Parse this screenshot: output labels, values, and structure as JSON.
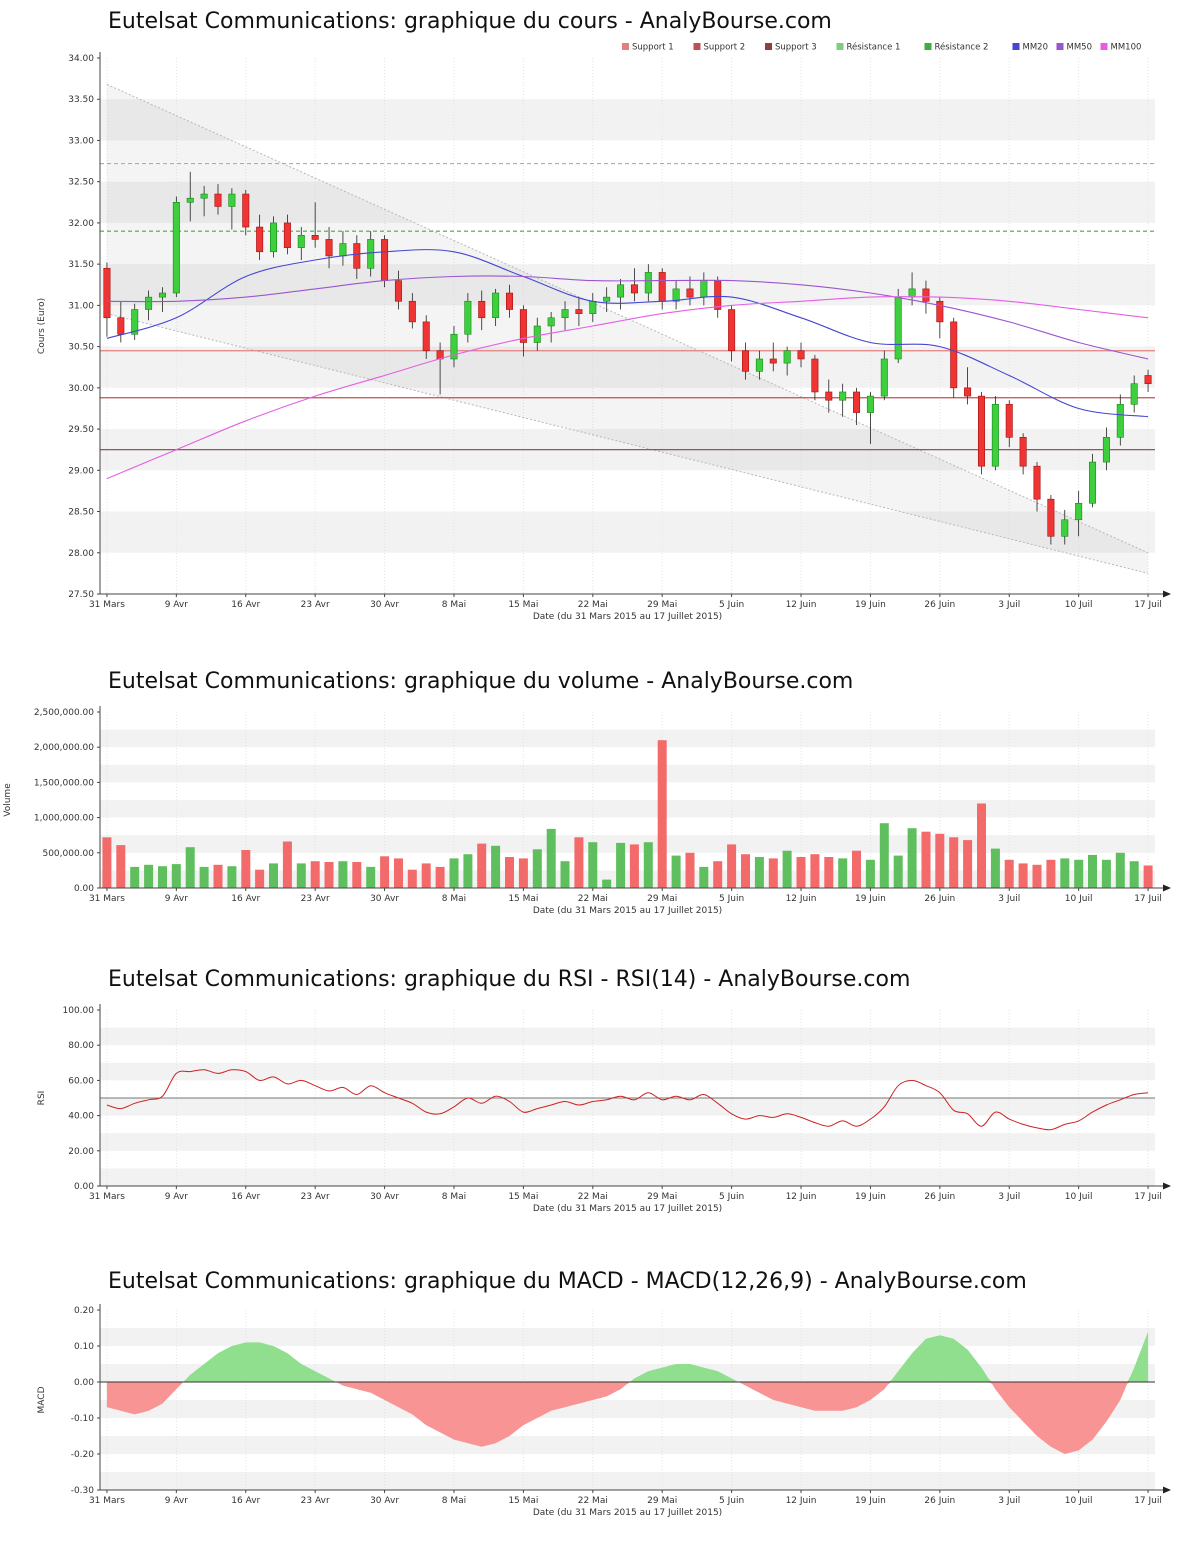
{
  "charts": {
    "price": {
      "title": "Eutelsat Communications: graphique du cours - AnalyBourse.com"
    },
    "volume": {
      "title": "Eutelsat Communications: graphique du volume - AnalyBourse.com"
    },
    "rsi": {
      "title": "Eutelsat Communications: graphique du RSI - RSI(14) - AnalyBourse.com"
    },
    "macd": {
      "title": "Eutelsat Communications: graphique du MACD - MACD(12,26,9) - AnalyBourse.com"
    }
  },
  "chart_data": [
    {
      "id": "price",
      "type": "candlestick",
      "title": "Eutelsat Communications: graphique du cours - AnalyBourse.com",
      "ylabel": "Cours (Euro)",
      "xlabel": "Date (du 31 Mars 2015 au 17 Juillet 2015)",
      "ylim": [
        27.5,
        34.0
      ],
      "ytick_step": 0.5,
      "stripe_step": 0.5,
      "x_tick_every": 5,
      "x_tick_labels": [
        "31 Mars",
        "9 Avr",
        "16 Avr",
        "23 Avr",
        "30 Avr",
        "8 Mai",
        "15 Mai",
        "22 Mai",
        "29 Mai",
        "5 Juin",
        "12 Juin",
        "19 Juin",
        "26 Juin",
        "3 Juil",
        "10 Juil",
        "17 Juil"
      ],
      "legend": [
        {
          "label": "Support 1",
          "color": "#e08080"
        },
        {
          "label": "Support 2",
          "color": "#c05050"
        },
        {
          "label": "Support 3",
          "color": "#8e4040"
        },
        {
          "label": "Résistance 1",
          "color": "#7ccf7c"
        },
        {
          "label": "Résistance 2",
          "color": "#3fae3f"
        },
        {
          "label": "MM20",
          "color": "#4646d0"
        },
        {
          "label": "MM50",
          "color": "#9a55d0"
        },
        {
          "label": "MM100",
          "color": "#e45fe4"
        }
      ],
      "support_lines": [
        {
          "label": "Support 1",
          "value": 30.45,
          "color": "#e08080",
          "dash": ""
        },
        {
          "label": "Support 2",
          "value": 29.88,
          "color": "#c05050",
          "dash": ""
        },
        {
          "label": "Support 3",
          "value": 29.25,
          "color": "#8e4040",
          "dash": ""
        }
      ],
      "resistance_lines": [
        {
          "label": "Résistance 1",
          "value": 32.72,
          "color": "#7ccf7c",
          "dash": "4,3"
        },
        {
          "label": "Résistance 2",
          "value": 31.9,
          "color": "#3fae3f",
          "dash": "4,3"
        }
      ],
      "moving_averages": [
        {
          "label": "MM20",
          "color": "#4646d0",
          "step": 5,
          "points": [
            30.6,
            30.85,
            31.35,
            31.55,
            31.65,
            31.65,
            31.35,
            31.05,
            31.05,
            31.1,
            30.85,
            30.55,
            30.5,
            30.15,
            29.75,
            29.65
          ]
        },
        {
          "label": "MM50",
          "color": "#9a55d0",
          "step": 5,
          "points": [
            31.05,
            31.05,
            31.1,
            31.2,
            31.3,
            31.35,
            31.35,
            31.3,
            31.3,
            31.3,
            31.25,
            31.15,
            31.0,
            30.8,
            30.55,
            30.35
          ]
        },
        {
          "label": "MM100",
          "color": "#e45fe4",
          "step": 5,
          "points": [
            28.9,
            29.25,
            29.6,
            29.9,
            30.15,
            30.4,
            30.6,
            30.75,
            30.9,
            31.0,
            31.05,
            31.1,
            31.1,
            31.05,
            30.95,
            30.85
          ]
        }
      ],
      "trend_channel": {
        "upper": [
          33.68,
          28.0
        ],
        "lower": [
          30.9,
          27.75
        ],
        "line_color": "#b8b8b8",
        "fill": "rgba(150,150,150,0.10)"
      },
      "candles": [
        [
          31.45,
          31.52,
          30.62,
          30.85
        ],
        [
          30.85,
          31.05,
          30.55,
          30.65
        ],
        [
          30.65,
          31.02,
          30.58,
          30.95
        ],
        [
          30.95,
          31.18,
          30.82,
          31.1
        ],
        [
          31.1,
          31.22,
          30.92,
          31.15
        ],
        [
          31.15,
          32.32,
          31.1,
          32.25
        ],
        [
          32.25,
          32.62,
          32.02,
          32.3
        ],
        [
          32.3,
          32.45,
          32.08,
          32.35
        ],
        [
          32.35,
          32.47,
          32.1,
          32.2
        ],
        [
          32.2,
          32.42,
          31.92,
          32.35
        ],
        [
          32.35,
          32.4,
          31.85,
          31.95
        ],
        [
          31.95,
          32.1,
          31.55,
          31.65
        ],
        [
          31.65,
          32.08,
          31.58,
          32.0
        ],
        [
          32.0,
          32.1,
          31.62,
          31.7
        ],
        [
          31.7,
          31.95,
          31.55,
          31.85
        ],
        [
          31.85,
          32.25,
          31.7,
          31.8
        ],
        [
          31.8,
          31.95,
          31.45,
          31.6
        ],
        [
          31.6,
          31.9,
          31.48,
          31.75
        ],
        [
          31.75,
          31.85,
          31.32,
          31.45
        ],
        [
          31.45,
          31.9,
          31.35,
          31.8
        ],
        [
          31.8,
          31.85,
          31.22,
          31.3
        ],
        [
          31.3,
          31.42,
          30.95,
          31.05
        ],
        [
          31.05,
          31.15,
          30.72,
          30.8
        ],
        [
          30.8,
          30.88,
          30.35,
          30.45
        ],
        [
          30.45,
          30.55,
          29.92,
          30.35
        ],
        [
          30.35,
          30.75,
          30.25,
          30.65
        ],
        [
          30.65,
          31.15,
          30.55,
          31.05
        ],
        [
          31.05,
          31.18,
          30.7,
          30.85
        ],
        [
          30.85,
          31.2,
          30.75,
          31.15
        ],
        [
          31.15,
          31.25,
          30.85,
          30.95
        ],
        [
          30.95,
          31.0,
          30.38,
          30.55
        ],
        [
          30.55,
          30.85,
          30.45,
          30.75
        ],
        [
          30.75,
          30.92,
          30.55,
          30.85
        ],
        [
          30.85,
          31.05,
          30.7,
          30.95
        ],
        [
          30.95,
          31.1,
          30.75,
          30.9
        ],
        [
          30.9,
          31.15,
          30.8,
          31.05
        ],
        [
          31.05,
          31.22,
          30.92,
          31.1
        ],
        [
          31.1,
          31.32,
          30.95,
          31.25
        ],
        [
          31.25,
          31.45,
          31.05,
          31.15
        ],
        [
          31.15,
          31.5,
          31.05,
          31.4
        ],
        [
          31.4,
          31.45,
          30.95,
          31.05
        ],
        [
          31.05,
          31.3,
          30.95,
          31.2
        ],
        [
          31.2,
          31.35,
          31.0,
          31.1
        ],
        [
          31.1,
          31.4,
          31.0,
          31.3
        ],
        [
          31.3,
          31.35,
          30.85,
          30.95
        ],
        [
          30.95,
          31.0,
          30.32,
          30.45
        ],
        [
          30.45,
          30.55,
          30.1,
          30.2
        ],
        [
          30.2,
          30.45,
          30.1,
          30.35
        ],
        [
          30.35,
          30.55,
          30.2,
          30.3
        ],
        [
          30.3,
          30.5,
          30.15,
          30.45
        ],
        [
          30.45,
          30.55,
          30.25,
          30.35
        ],
        [
          30.35,
          30.4,
          29.85,
          29.95
        ],
        [
          29.95,
          30.1,
          29.7,
          29.85
        ],
        [
          29.85,
          30.05,
          29.65,
          29.95
        ],
        [
          29.95,
          30.0,
          29.55,
          29.7
        ],
        [
          29.7,
          29.95,
          29.32,
          29.9
        ],
        [
          29.9,
          30.45,
          29.85,
          30.35
        ],
        [
          30.35,
          31.2,
          30.3,
          31.1
        ],
        [
          31.1,
          31.4,
          31.0,
          31.2
        ],
        [
          31.2,
          31.3,
          30.9,
          31.05
        ],
        [
          31.05,
          31.1,
          30.6,
          30.8
        ],
        [
          30.8,
          30.85,
          29.88,
          30.0
        ],
        [
          30.0,
          30.25,
          29.8,
          29.9
        ],
        [
          29.9,
          29.95,
          28.95,
          29.05
        ],
        [
          29.05,
          29.9,
          29.0,
          29.8
        ],
        [
          29.8,
          29.85,
          29.28,
          29.4
        ],
        [
          29.4,
          29.45,
          28.95,
          29.05
        ],
        [
          29.05,
          29.1,
          28.5,
          28.65
        ],
        [
          28.65,
          28.7,
          28.1,
          28.2
        ],
        [
          28.2,
          28.52,
          28.1,
          28.4
        ],
        [
          28.4,
          28.75,
          28.2,
          28.6
        ],
        [
          28.6,
          29.2,
          28.55,
          29.1
        ],
        [
          29.1,
          29.52,
          29.0,
          29.4
        ],
        [
          29.4,
          29.92,
          29.3,
          29.8
        ],
        [
          29.8,
          30.15,
          29.7,
          30.05
        ],
        [
          30.15,
          30.22,
          29.95,
          30.05
        ]
      ]
    },
    {
      "id": "volume",
      "type": "bar",
      "title": "Eutelsat Communications: graphique du volume - AnalyBourse.com",
      "ylabel": "Volume",
      "xlabel": "Date (du 31 Mars 2015 au 17 Juillet 2015)",
      "ylim": [
        0,
        2500000
      ],
      "ytick_step": 500000,
      "stripe_step": 250000,
      "x_tick_every": 5,
      "x_tick_labels": [
        "31 Mars",
        "9 Avr",
        "16 Avr",
        "23 Avr",
        "30 Avr",
        "8 Mai",
        "15 Mai",
        "22 Mai",
        "29 Mai",
        "5 Juin",
        "12 Juin",
        "19 Juin",
        "26 Juin",
        "3 Juil",
        "10 Juil",
        "17 Juil"
      ],
      "up_color": "#5fbf5f",
      "down_color": "#f26a6a",
      "values": [
        720000,
        610000,
        300000,
        330000,
        310000,
        340000,
        580000,
        300000,
        330000,
        310000,
        540000,
        260000,
        350000,
        660000,
        350000,
        380000,
        370000,
        380000,
        370000,
        300000,
        450000,
        420000,
        260000,
        350000,
        300000,
        420000,
        480000,
        630000,
        600000,
        440000,
        420000,
        550000,
        840000,
        380000,
        720000,
        650000,
        120000,
        640000,
        620000,
        650000,
        2100000,
        460000,
        500000,
        300000,
        380000,
        620000,
        480000,
        440000,
        420000,
        530000,
        440000,
        480000,
        440000,
        420000,
        530000,
        400000,
        920000,
        460000,
        850000,
        800000,
        770000,
        720000,
        680000,
        1200000,
        560000,
        400000,
        350000,
        330000,
        400000,
        420000,
        400000,
        470000,
        400000,
        500000,
        380000,
        320000
      ]
    },
    {
      "id": "rsi",
      "type": "line",
      "title": "Eutelsat Communications: graphique du RSI - RSI(14) - AnalyBourse.com",
      "ylabel": "RSI",
      "xlabel": "Date (du 31 Mars 2015 au 17 Juillet 2015)",
      "ylim": [
        0,
        100
      ],
      "ytick_step": 20,
      "stripe_step": 10,
      "midline": 50,
      "line_color": "#cc2222",
      "x_tick_every": 5,
      "x_tick_labels": [
        "31 Mars",
        "9 Avr",
        "16 Avr",
        "23 Avr",
        "30 Avr",
        "8 Mai",
        "15 Mai",
        "22 Mai",
        "29 Mai",
        "5 Juin",
        "12 Juin",
        "19 Juin",
        "26 Juin",
        "3 Juil",
        "10 Juil",
        "17 Juil"
      ],
      "values": [
        46,
        44,
        47,
        49,
        51,
        64,
        65,
        66,
        64,
        66,
        65,
        60,
        62,
        58,
        60,
        57,
        54,
        56,
        52,
        57,
        53,
        50,
        47,
        42,
        41,
        45,
        50,
        47,
        51,
        48,
        42,
        44,
        46,
        48,
        46,
        48,
        49,
        51,
        49,
        53,
        49,
        51,
        49,
        52,
        47,
        41,
        38,
        40,
        39,
        41,
        39,
        36,
        34,
        37,
        34,
        38,
        45,
        57,
        60,
        57,
        53,
        43,
        41,
        34,
        42,
        38,
        35,
        33,
        32,
        35,
        37,
        42,
        46,
        49,
        52,
        53
      ]
    },
    {
      "id": "macd",
      "type": "area",
      "title": "Eutelsat Communications: graphique du MACD - MACD(12,26,9) - AnalyBourse.com",
      "ylabel": "MACD",
      "xlabel": "Date (du 31 Mars 2015 au 17 Juillet 2015)",
      "ylim": [
        -0.3,
        0.2
      ],
      "ytick_step": 0.1,
      "stripe_step": 0.05,
      "pos_color": "#8fdf8f",
      "neg_color": "#f89494",
      "x_tick_every": 5,
      "x_tick_labels": [
        "31 Mars",
        "9 Avr",
        "16 Avr",
        "23 Avr",
        "30 Avr",
        "8 Mai",
        "15 Mai",
        "22 Mai",
        "29 Mai",
        "5 Juin",
        "12 Juin",
        "19 Juin",
        "26 Juin",
        "3 Juil",
        "10 Juil",
        "17 Juil"
      ],
      "values": [
        -0.07,
        -0.08,
        -0.09,
        -0.08,
        -0.06,
        -0.02,
        0.02,
        0.05,
        0.08,
        0.1,
        0.11,
        0.11,
        0.1,
        0.08,
        0.05,
        0.03,
        0.01,
        -0.01,
        -0.02,
        -0.03,
        -0.05,
        -0.07,
        -0.09,
        -0.12,
        -0.14,
        -0.16,
        -0.17,
        -0.18,
        -0.17,
        -0.15,
        -0.12,
        -0.1,
        -0.08,
        -0.07,
        -0.06,
        -0.05,
        -0.04,
        -0.02,
        0.01,
        0.03,
        0.04,
        0.05,
        0.05,
        0.04,
        0.03,
        0.01,
        -0.01,
        -0.03,
        -0.05,
        -0.06,
        -0.07,
        -0.08,
        -0.08,
        -0.08,
        -0.07,
        -0.05,
        -0.02,
        0.03,
        0.08,
        0.12,
        0.13,
        0.12,
        0.09,
        0.04,
        -0.02,
        -0.07,
        -0.11,
        -0.15,
        -0.18,
        -0.2,
        -0.19,
        -0.16,
        -0.11,
        -0.05,
        0.04,
        0.14
      ]
    }
  ]
}
